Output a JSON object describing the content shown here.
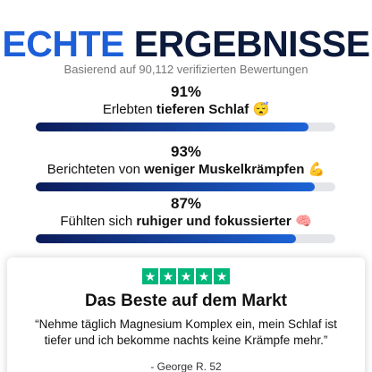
{
  "header": {
    "title_part_1": "ECHTE",
    "title_part_2": "ERGEBNISSE",
    "subtitle": "Basierend auf 90,112 verifizierten Bewertungen"
  },
  "xlim": [
    0,
    100
  ],
  "stats": [
    {
      "value": 91,
      "value_label": "91%",
      "text": "Erlebten",
      "bold": "tieferen Schlaf",
      "emoji": "😴"
    },
    {
      "value": 93,
      "value_label": "93%",
      "text": "Berichteten von",
      "bold": "weniger Muskelkrämpfen",
      "emoji": "💪"
    },
    {
      "value": 87,
      "value_label": "87%",
      "text": "Fühlten sich",
      "bold": "ruhiger und fokussierter",
      "emoji": "🧠"
    }
  ],
  "review": {
    "title": "Das Beste auf dem Markt",
    "quote": "“Nehme täglich Magnesium Komplex ein, mein Schlaf ist tiefer und ich bekomme nachts keine Krämpfe mehr.”",
    "author": "- George R. 52"
  }
}
